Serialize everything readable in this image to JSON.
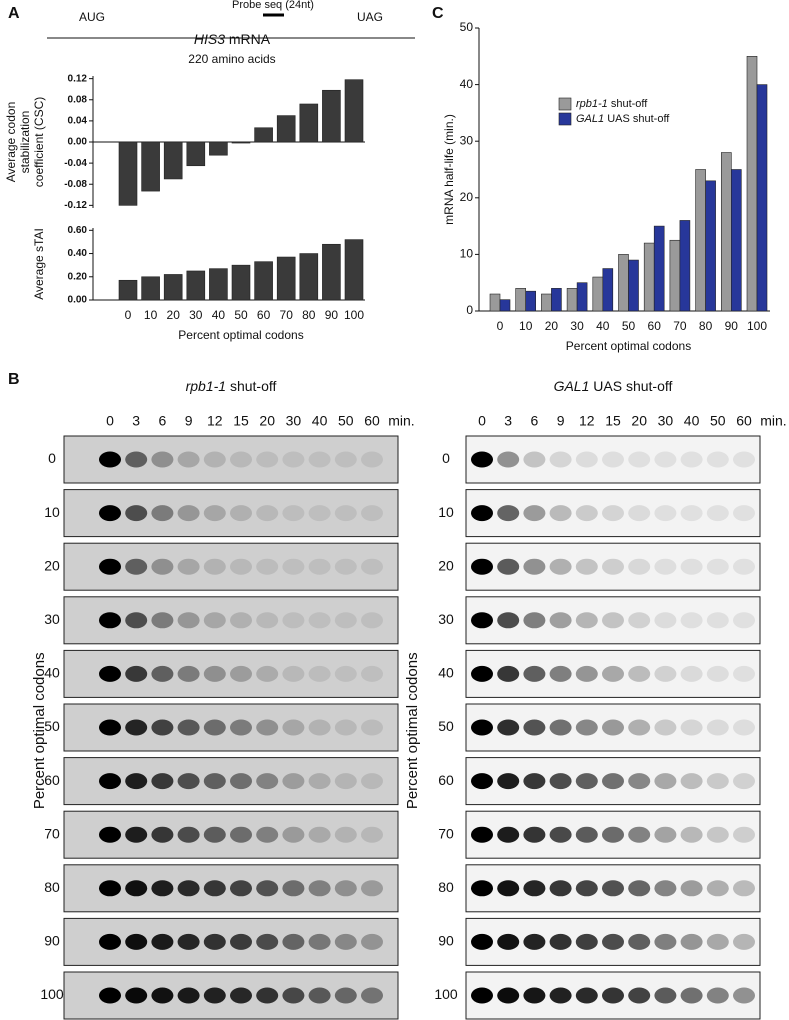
{
  "schematic": {
    "label": "A",
    "start": "AUG",
    "stop": "UAG",
    "probe": "Probe seq (24nt)",
    "gene": "HIS3",
    "mrna": "mRNA",
    "length": "220 amino acids"
  },
  "chart_data": [
    {
      "type": "bar",
      "ylabel": [
        "Average codon",
        "stabilization",
        "coefficient (CSC)"
      ],
      "values": [
        -0.12,
        -0.093,
        -0.07,
        -0.045,
        -0.025,
        -0.002,
        0.027,
        0.05,
        0.072,
        0.098,
        0.118
      ],
      "color": "#3a3a3a",
      "ylim": [
        -0.125,
        0.125
      ],
      "yticks": [
        0.12,
        0.08,
        0.04,
        {
          "value": 0,
          "label": "0.00"
        },
        -0.04,
        -0.08,
        -0.12
      ]
    },
    {
      "type": "bar",
      "ylabel": [
        "Average sTAI"
      ],
      "xlabel": "Percent optimal codons",
      "categories": [
        0,
        10,
        20,
        30,
        40,
        50,
        60,
        70,
        80,
        90,
        100
      ],
      "values": [
        0.17,
        0.2,
        0.22,
        0.25,
        0.27,
        0.3,
        0.33,
        0.37,
        0.4,
        0.48,
        0.52
      ],
      "color": "#3a3a3a",
      "ylim": [
        0,
        0.62
      ],
      "yticks": [
        {
          "value": 0,
          "label": "0.00"
        },
        {
          "value": 0.2,
          "label": "0.20"
        },
        {
          "value": 0.4,
          "label": "0.40"
        },
        {
          "value": 0.6,
          "label": "0.60"
        }
      ]
    },
    {
      "type": "bar",
      "label": "C",
      "ylabel": [
        "mRNA half-life (min.)"
      ],
      "xlabel": "Percent optimal codons",
      "categories": [
        0,
        10,
        20,
        30,
        40,
        50,
        60,
        70,
        80,
        90,
        100
      ],
      "series": [
        {
          "name": "rpb1-1 shut-off",
          "color": "#9a9a9a",
          "values": [
            3,
            4,
            3,
            4,
            6,
            10,
            12,
            12.5,
            25,
            28,
            45
          ]
        },
        {
          "name": "GAL1 UAS shut-off",
          "color": "#27379a",
          "values": [
            2,
            3.5,
            4,
            5,
            7.5,
            9,
            15,
            16,
            23,
            25,
            40
          ]
        }
      ],
      "ylim": [
        0,
        50
      ],
      "yticks": [
        0,
        10,
        20,
        30,
        40,
        50
      ],
      "legend": "upper-left"
    }
  ],
  "blots": {
    "label": "B",
    "titles": [
      "rpb1-1 shut-off",
      "GAL1 UAS shut-off"
    ],
    "times": [
      0,
      3,
      6,
      9,
      12,
      15,
      20,
      30,
      40,
      50,
      60
    ],
    "unit": "min.",
    "rows": [
      0,
      10,
      20,
      30,
      40,
      50,
      60,
      70,
      80,
      90,
      100
    ],
    "ylabel": "Percent optimal codons"
  }
}
